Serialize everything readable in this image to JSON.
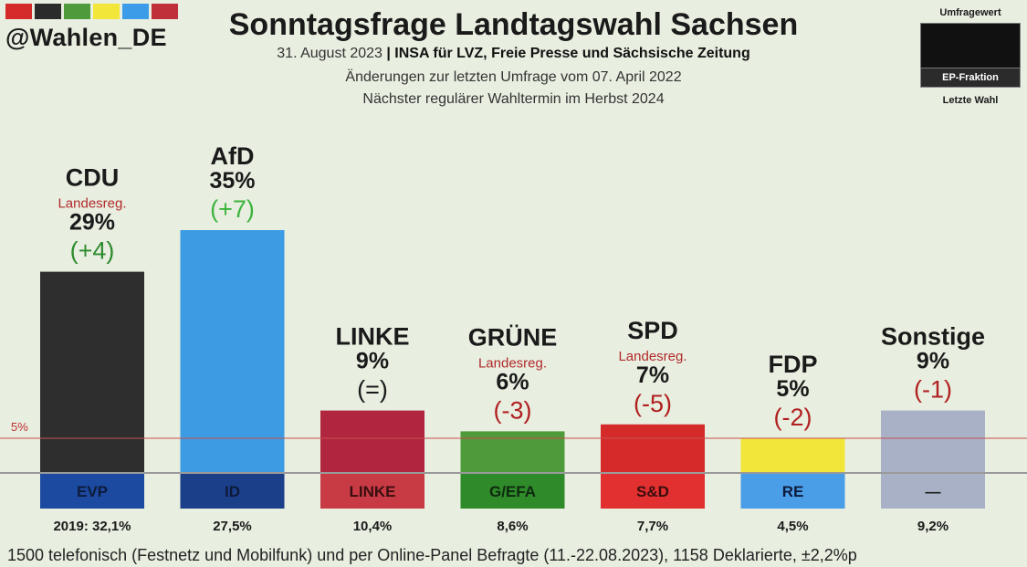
{
  "header": {
    "handle": "@Wahlen_DE",
    "brand_colors": [
      "#d42a2a",
      "#2b2b2b",
      "#4f9a3a",
      "#f2e63a",
      "#3d9ce8",
      "#c0303a"
    ],
    "title": "Sonntagsfrage Landtagswahl Sachsen",
    "subtitle_date": "31. August 2023",
    "subtitle_sep": " | ",
    "subtitle_source": "INSA für LVZ, Freie Presse und Sächsische Zeitung",
    "subtitle_changes": "Änderungen zur letzten Umfrage vom 07. April 2022",
    "subtitle_next": "Nächster regulärer Wahltermin im Herbst 2024"
  },
  "legend": {
    "top": "Umfragewert",
    "band": "EP-Fraktion",
    "bottom": "Letzte Wahl"
  },
  "chart_data": {
    "type": "bar",
    "threshold": {
      "label": "5%",
      "value": 5
    },
    "ylim": [
      0,
      35
    ],
    "bars": [
      {
        "party": "CDU",
        "note": "Landesreg.",
        "value_label": "29%",
        "value": 29,
        "change": "(+4)",
        "change_color": "#2e8b2e",
        "color": "#2e2e2e",
        "ep_group": "EVP",
        "ep_color": "#1c4aa0",
        "ep_text_color": "#0e1a3a",
        "last_election": "2019: 32,1%"
      },
      {
        "party": "AfD",
        "note": "",
        "value_label": "35%",
        "value": 35,
        "change": "(+7)",
        "change_color": "#3cb43c",
        "color": "#3d9be3",
        "ep_group": "ID",
        "ep_color": "#1c3f8a",
        "ep_text_color": "#0e1a3a",
        "last_election": "27,5%"
      },
      {
        "party": "LINKE",
        "note": "",
        "value_label": "9%",
        "value": 9,
        "change": "(=)",
        "change_color": "#1a1a1a",
        "color": "#b1263f",
        "ep_group": "LINKE",
        "ep_color": "#c83a44",
        "ep_text_color": "#3a0e10",
        "last_election": "10,4%"
      },
      {
        "party": "GRÜNE",
        "note": "Landesreg.",
        "value_label": "6%",
        "value": 6,
        "change": "(-3)",
        "change_color": "#b02020",
        "color": "#4f9a3a",
        "ep_group": "G/EFA",
        "ep_color": "#2f8a2a",
        "ep_text_color": "#0e2a0e",
        "last_election": "8,6%"
      },
      {
        "party": "SPD",
        "note": "Landesreg.",
        "value_label": "7%",
        "value": 7,
        "change": "(-5)",
        "change_color": "#b02020",
        "color": "#d42a2a",
        "ep_group": "S&D",
        "ep_color": "#e23030",
        "ep_text_color": "#3a0e0e",
        "last_election": "7,7%"
      },
      {
        "party": "FDP",
        "note": "",
        "value_label": "5%",
        "value": 5,
        "change": "(-2)",
        "change_color": "#b02020",
        "color": "#f2e63a",
        "ep_group": "RE",
        "ep_color": "#4a9ee8",
        "ep_text_color": "#0e1a3a",
        "last_election": "4,5%"
      },
      {
        "party": "Sonstige",
        "note": "",
        "value_label": "9%",
        "value": 9,
        "change": "(-1)",
        "change_color": "#b02020",
        "color": "#a9b1c6",
        "ep_group": "—",
        "ep_color": "#a9b1c6",
        "ep_text_color": "#1a1a1a",
        "last_election": "9,2%"
      }
    ]
  },
  "footer": "1500 telefonisch (Festnetz und Mobilfunk) und per Online-Panel Befragte (11.-22.08.2023), 1158 Deklarierte, ±2,2%p"
}
